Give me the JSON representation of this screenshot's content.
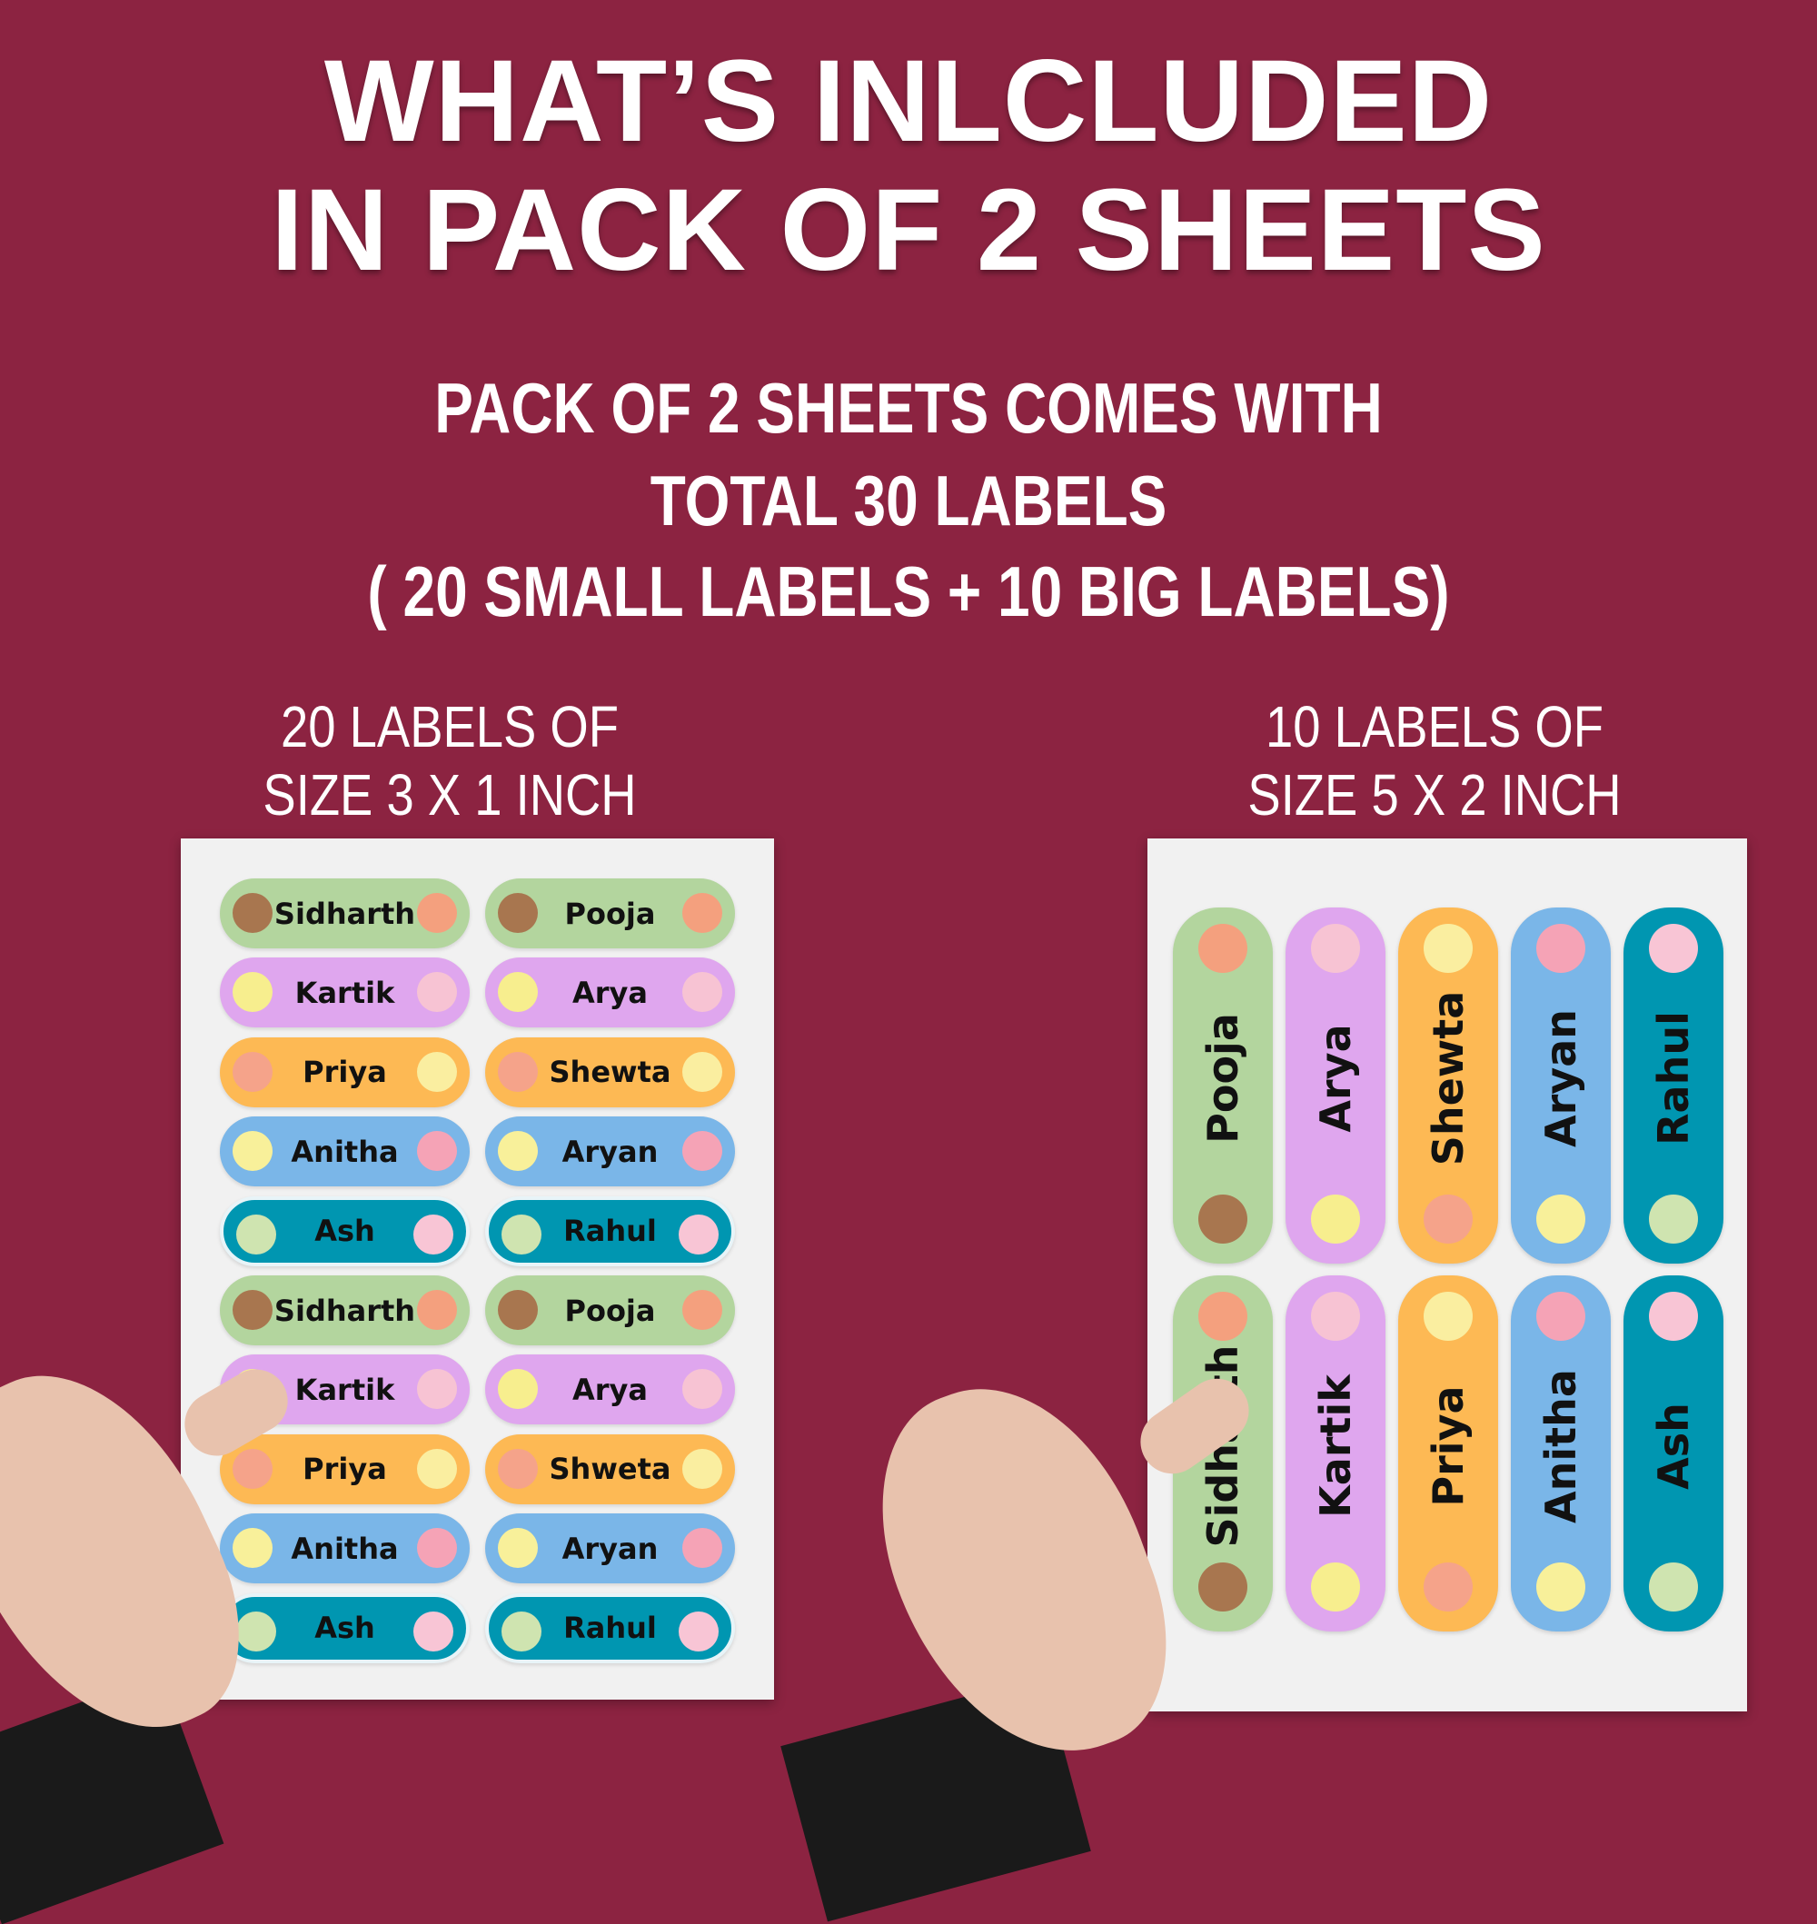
{
  "title": {
    "line1": "WHAT’S INLCLUDED",
    "line2": "IN PACK OF 2 SHEETS"
  },
  "subtitle": {
    "line1": "PACK OF 2 SHEETS COMES WITH",
    "line2": "TOTAL 30 LABELS",
    "line3": "( 20 SMALL LABELS + 10 BIG LABELS)"
  },
  "left": {
    "heading1": "20 LABELS OF",
    "heading2": "SIZE 3 X 1 INCH",
    "labels": [
      [
        "Sidharth",
        "Pooja"
      ],
      [
        "Kartik",
        "Arya"
      ],
      [
        "Priya",
        "Shewta"
      ],
      [
        "Anitha",
        "Aryan"
      ],
      [
        "Ash",
        "Rahul"
      ],
      [
        "Sidharth",
        "Pooja"
      ],
      [
        "Kartik",
        "Arya"
      ],
      [
        "Priya",
        "Shweta"
      ],
      [
        "Anitha",
        "Aryan"
      ],
      [
        "Ash",
        "Rahul"
      ]
    ]
  },
  "right": {
    "heading1": "10 LABELS OF",
    "heading2": "SIZE 5 X 2 INCH",
    "labels": [
      [
        "Pooja",
        "Arya",
        "Shewta",
        "Aryan",
        "Rahul"
      ],
      [
        "Sidharth",
        "Kartik",
        "Priya",
        "Anitha",
        "Ash"
      ]
    ]
  },
  "colors": {
    "background": "#8c2341",
    "green": "#b3d59e",
    "purple": "#dfa6ee",
    "orange": "#fdb954",
    "blue": "#7ab6e8",
    "teal": "#0096b1"
  },
  "row_themes": [
    {
      "color": "green",
      "icons": [
        "bear-icon",
        "rainbow-icon"
      ],
      "ic1": "#a8764f",
      "ic2": "#f4a07e"
    },
    {
      "color": "purple",
      "icons": [
        "sparkle-icon",
        "bunny-icon"
      ],
      "ic1": "#f7ee8e",
      "ic2": "#f7c3d3"
    },
    {
      "color": "orange",
      "icons": [
        "star-icon",
        "moon-icon"
      ],
      "ic1": "#f5a38a",
      "ic2": "#faeea0"
    },
    {
      "color": "blue",
      "icons": [
        "sun-icon",
        "flowers-icon"
      ],
      "ic1": "#f8f09a",
      "ic2": "#f5a3b6"
    },
    {
      "color": "teal",
      "icons": [
        "frog-icon",
        "flower-icon"
      ],
      "ic1": "#cfe4b0",
      "ic2": "#f8c5d5"
    }
  ]
}
